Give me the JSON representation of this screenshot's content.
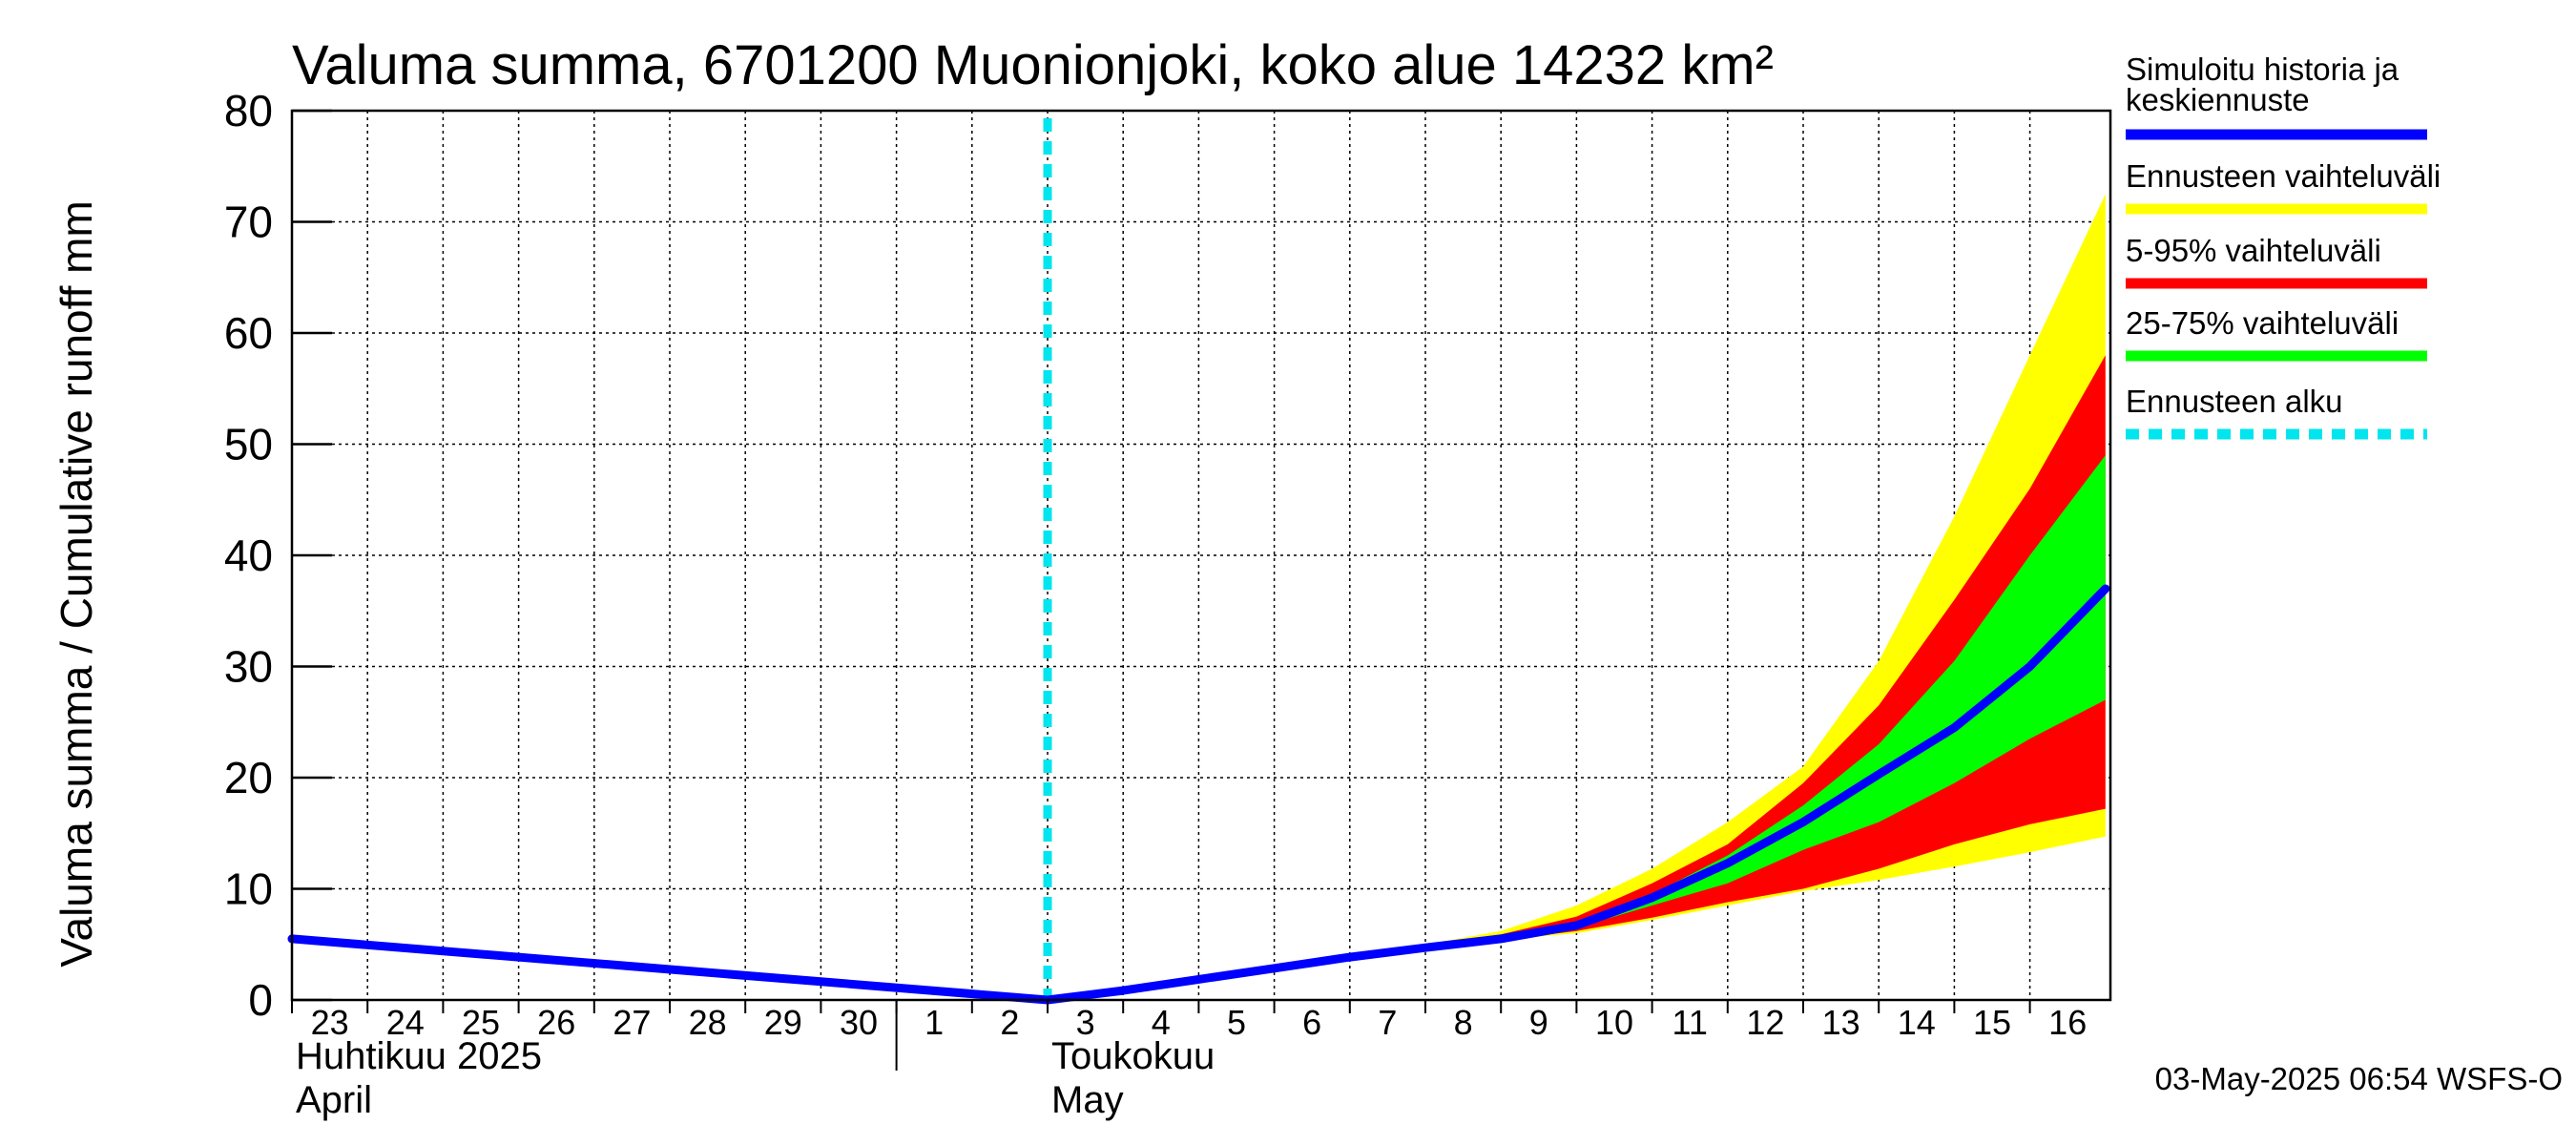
{
  "chart_data": {
    "type": "area",
    "title": "Valuma summa, 6701200 Muonionjoki, koko alue 14232 km²",
    "ylabel": "Valuma summa / Cumulative runoff    mm",
    "ylim": [
      0,
      80
    ],
    "yticks": [
      0,
      10,
      20,
      30,
      40,
      50,
      60,
      70,
      80
    ],
    "grid": true,
    "x_start": "2025-04-23",
    "x_end": "2025-05-17",
    "day_ticks": [
      {
        "date": "2025-04-23",
        "label": "23"
      },
      {
        "date": "2025-04-24",
        "label": "24"
      },
      {
        "date": "2025-04-25",
        "label": "25"
      },
      {
        "date": "2025-04-26",
        "label": "26"
      },
      {
        "date": "2025-04-27",
        "label": "27"
      },
      {
        "date": "2025-04-28",
        "label": "28"
      },
      {
        "date": "2025-04-29",
        "label": "29"
      },
      {
        "date": "2025-04-30",
        "label": "30"
      },
      {
        "date": "2025-05-01",
        "label": "1"
      },
      {
        "date": "2025-05-02",
        "label": "2"
      },
      {
        "date": "2025-05-03",
        "label": "3"
      },
      {
        "date": "2025-05-04",
        "label": "4"
      },
      {
        "date": "2025-05-05",
        "label": "5"
      },
      {
        "date": "2025-05-06",
        "label": "6"
      },
      {
        "date": "2025-05-07",
        "label": "7"
      },
      {
        "date": "2025-05-08",
        "label": "8"
      },
      {
        "date": "2025-05-09",
        "label": "9"
      },
      {
        "date": "2025-05-10",
        "label": "10"
      },
      {
        "date": "2025-05-11",
        "label": "11"
      },
      {
        "date": "2025-05-12",
        "label": "12"
      },
      {
        "date": "2025-05-13",
        "label": "13"
      },
      {
        "date": "2025-05-14",
        "label": "14"
      },
      {
        "date": "2025-05-15",
        "label": "15"
      },
      {
        "date": "2025-05-16",
        "label": "16"
      }
    ],
    "month_labels": [
      {
        "date": "2025-04-23",
        "line1": "Huhtikuu  2025",
        "line2": "April"
      },
      {
        "date": "2025-05-03",
        "line1": "Toukokuu",
        "line2": "May"
      }
    ],
    "month_separator": "2025-05-01",
    "forecast_start": "2025-05-03",
    "x": [
      "2025-04-23",
      "2025-05-03",
      "2025-05-04",
      "2025-05-05",
      "2025-05-06",
      "2025-05-07",
      "2025-05-08",
      "2025-05-09",
      "2025-05-10",
      "2025-05-11",
      "2025-05-12",
      "2025-05-13",
      "2025-05-14",
      "2025-05-15",
      "2025-05-16",
      "2025-05-17"
    ],
    "series": [
      {
        "name": "Ennusteen vaihteluväli",
        "kind": "band",
        "color": "#ffff00",
        "lower": [
          5.5,
          0,
          0.8,
          1.8,
          2.8,
          3.8,
          4.6,
          5.4,
          6.0,
          7.2,
          8.5,
          9.8,
          10.8,
          12.0,
          13.3,
          14.7
        ],
        "upper": [
          5.5,
          0,
          0.9,
          1.9,
          2.9,
          4.0,
          5.0,
          6.2,
          8.5,
          11.8,
          16.0,
          21.0,
          30.5,
          43.5,
          58.0,
          72.5
        ]
      },
      {
        "name": "5-95% vaihteluväli",
        "kind": "band",
        "color": "#ff0000",
        "lower": [
          5.5,
          0,
          0.8,
          1.8,
          2.8,
          3.8,
          4.6,
          5.4,
          6.2,
          7.4,
          8.8,
          10.0,
          11.8,
          14.0,
          15.8,
          17.2
        ],
        "upper": [
          5.5,
          0,
          0.9,
          1.9,
          2.9,
          4.0,
          4.9,
          5.9,
          7.5,
          10.5,
          14.0,
          19.5,
          26.5,
          36.0,
          46.0,
          58.0
        ]
      },
      {
        "name": "25-75% vaihteluväli",
        "kind": "band",
        "color": "#00ff00",
        "lower": [
          5.5,
          0,
          0.8,
          1.8,
          2.8,
          3.8,
          4.7,
          5.5,
          6.5,
          8.5,
          10.5,
          13.5,
          16.0,
          19.5,
          23.5,
          27.0
        ],
        "upper": [
          5.5,
          0,
          0.85,
          1.85,
          2.85,
          3.9,
          4.8,
          5.7,
          7.0,
          9.5,
          13.0,
          17.5,
          23.0,
          30.5,
          40.0,
          49.0
        ]
      },
      {
        "name": "Simuloitu historia ja keskiennuste",
        "kind": "line",
        "color": "#0000ff",
        "values": [
          5.5,
          0,
          0.85,
          1.85,
          2.85,
          3.85,
          4.7,
          5.5,
          6.7,
          9.2,
          12.3,
          16.0,
          20.3,
          24.5,
          30.0,
          37.0
        ]
      },
      {
        "name": "Ennusteen alku",
        "kind": "vline",
        "color": "#00e5ee",
        "date": "2025-05-03"
      }
    ]
  },
  "legend": [
    {
      "lines": [
        "Simuloitu historia ja",
        "keskiennuste"
      ],
      "color": "#0000ff",
      "style": "solid"
    },
    {
      "lines": [
        "Ennusteen vaihteluväli"
      ],
      "color": "#ffff00",
      "style": "solid"
    },
    {
      "lines": [
        "5-95% vaihteluväli"
      ],
      "color": "#ff0000",
      "style": "solid"
    },
    {
      "lines": [
        "25-75% vaihteluväli"
      ],
      "color": "#00ff00",
      "style": "solid"
    },
    {
      "lines": [
        "Ennusteen alku"
      ],
      "color": "#00e5ee",
      "style": "dashed"
    }
  ],
  "footer": "03-May-2025 06:54 WSFS-O"
}
